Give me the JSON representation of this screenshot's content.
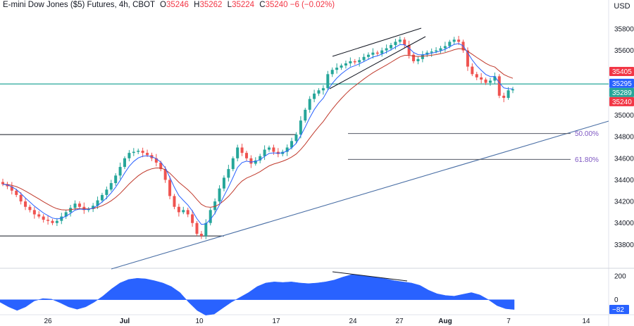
{
  "chart_data": [
    {
      "type": "candlestick",
      "title": "E-mini Dow Jones ($5) Futures, 4h, CBOT",
      "ohlc_header": {
        "open_label": "O",
        "open": "35246",
        "high_label": "H",
        "high": "35262",
        "low_label": "L",
        "low": "35224",
        "close_label": "C",
        "close": "35240",
        "change": "−6 (−0.02%)"
      },
      "currency": "USD",
      "ylim": [
        33600,
        35950
      ],
      "y_ticks": [
        "35800",
        "35600",
        "35400",
        "35200",
        "35000",
        "34800",
        "34600",
        "34400",
        "34200",
        "34000",
        "33800"
      ],
      "x_ticks": [
        "26",
        "Jul",
        "10",
        "17",
        "24",
        "27",
        "Aug",
        "7",
        "14"
      ],
      "x_tick_weight": [
        "normal",
        "bold",
        "normal",
        "normal",
        "normal",
        "normal",
        "bold",
        "normal",
        "normal"
      ],
      "closes": [
        34360,
        34340,
        34300,
        34260,
        34200,
        34150,
        34120,
        34080,
        34060,
        34030,
        34020,
        34000,
        34020,
        34060,
        34100,
        34140,
        34180,
        34150,
        34120,
        34130,
        34160,
        34210,
        34260,
        34310,
        34370,
        34440,
        34520,
        34600,
        34650,
        34660,
        34670,
        34650,
        34630,
        34600,
        34560,
        34500,
        34400,
        34250,
        34150,
        34100,
        34120,
        34080,
        34000,
        33900,
        33880,
        34000,
        34120,
        34200,
        34320,
        34420,
        34500,
        34600,
        34700,
        34650,
        34600,
        34550,
        34580,
        34620,
        34680,
        34700,
        34660,
        34640,
        34660,
        34700,
        34760,
        34820,
        34950,
        35050,
        35150,
        35200,
        35230,
        35250,
        35380,
        35420,
        35440,
        35460,
        35480,
        35500,
        35490,
        35510,
        35540,
        35560,
        35580,
        35570,
        35600,
        35620,
        35650,
        35680,
        35700,
        35650,
        35560,
        35500,
        35520,
        35560,
        35580,
        35590,
        35600,
        35620,
        35640,
        35680,
        35700,
        35680,
        35600,
        35450,
        35380,
        35350,
        35330,
        35300,
        35320,
        35360,
        35180,
        35160,
        35230,
        35240
      ],
      "ema_fast_last": 35295,
      "ema_slow_last": 35405,
      "price_levels": [
        {
          "value": 35289,
          "label": "35289",
          "color": "#26a69a"
        }
      ],
      "axis_badges": [
        {
          "value": 35405,
          "label": "35405",
          "color": "#f23645"
        },
        {
          "value": 35295,
          "label": "35295",
          "color": "#2962ff"
        },
        {
          "value": 35289,
          "label": "35289",
          "color": "#26a69a"
        },
        {
          "value": 35240,
          "label": "35240",
          "color": "#f23645"
        }
      ],
      "fib_levels": [
        {
          "value": 34830,
          "label": "50.00%"
        },
        {
          "value": 34590,
          "label": "61.80%"
        }
      ],
      "range_lines": [
        {
          "value": 34820
        },
        {
          "value": 33880
        }
      ]
    },
    {
      "type": "area",
      "ylim": [
        -120,
        240
      ],
      "y_ticks": [
        "200",
        "0"
      ],
      "last_value": "−82",
      "values": [
        -20,
        -60,
        -90,
        -60,
        -10,
        10,
        5,
        -25,
        -60,
        -80,
        -60,
        -20,
        30,
        90,
        140,
        170,
        180,
        175,
        160,
        140,
        110,
        60,
        -20,
        -90,
        -130,
        -120,
        -70,
        -20,
        20,
        60,
        110,
        140,
        150,
        145,
        150,
        140,
        135,
        140,
        150,
        165,
        190,
        210,
        205,
        195,
        185,
        175,
        160,
        150,
        140,
        120,
        80,
        50,
        35,
        30,
        45,
        60,
        40,
        0,
        -50,
        -75,
        -82
      ]
    }
  ]
}
